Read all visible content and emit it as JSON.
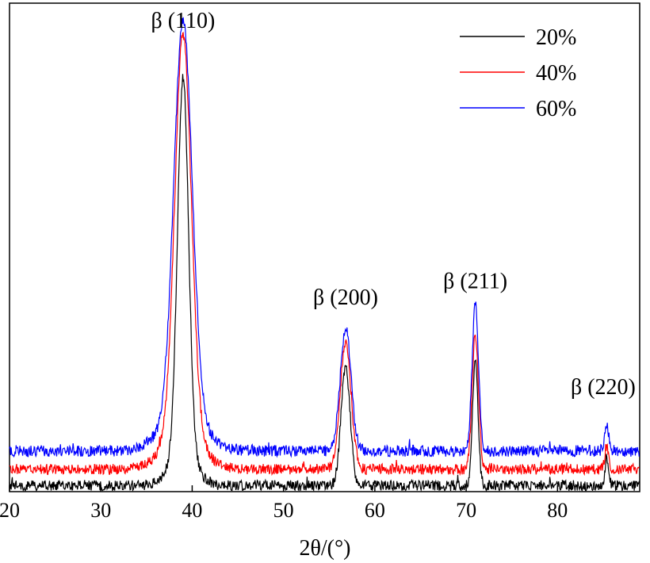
{
  "chart_data": {
    "type": "line",
    "title": "",
    "xlabel": "2θ/(°)",
    "ylabel": "",
    "xlim": [
      20,
      89
    ],
    "ylim": [
      0,
      120
    ],
    "x_ticks": [
      "20",
      "30",
      "40",
      "50",
      "60",
      "70",
      "80"
    ],
    "y_ticks_visible": false,
    "grid": false,
    "legend_position": "top-right",
    "series": [
      {
        "name": "20%",
        "color": "#000000",
        "baseline": 1.5,
        "noise": 1.3,
        "peaks": [
          {
            "x": 39.0,
            "height": 93,
            "width": 0.6
          },
          {
            "x": 56.8,
            "height": 29,
            "width": 0.5
          },
          {
            "x": 71.0,
            "height": 31,
            "width": 0.3
          },
          {
            "x": 85.4,
            "height": 7,
            "width": 0.2
          }
        ]
      },
      {
        "name": "40%",
        "color": "#ff0000",
        "baseline": 5.5,
        "noise": 1.3,
        "peaks": [
          {
            "x": 39.0,
            "height": 99,
            "width": 0.9
          },
          {
            "x": 56.8,
            "height": 31,
            "width": 0.6
          },
          {
            "x": 71.0,
            "height": 33,
            "width": 0.35
          },
          {
            "x": 85.4,
            "height": 6,
            "width": 0.2
          }
        ]
      },
      {
        "name": "60%",
        "color": "#0000ff",
        "baseline": 10,
        "noise": 1.4,
        "peaks": [
          {
            "x": 39.0,
            "height": 98,
            "width": 1.0
          },
          {
            "x": 56.8,
            "height": 30,
            "width": 0.6
          },
          {
            "x": 71.0,
            "height": 36,
            "width": 0.35
          },
          {
            "x": 85.4,
            "height": 6,
            "width": 0.25
          }
        ]
      }
    ],
    "annotations": [
      {
        "text": "β (110)",
        "x": 39.0,
        "y": 114
      },
      {
        "text": "β (200)",
        "x": 56.8,
        "y": 46
      },
      {
        "text": "β (211)",
        "x": 71.0,
        "y": 50
      },
      {
        "text": "β (220)",
        "x": 85.0,
        "y": 24
      }
    ]
  }
}
